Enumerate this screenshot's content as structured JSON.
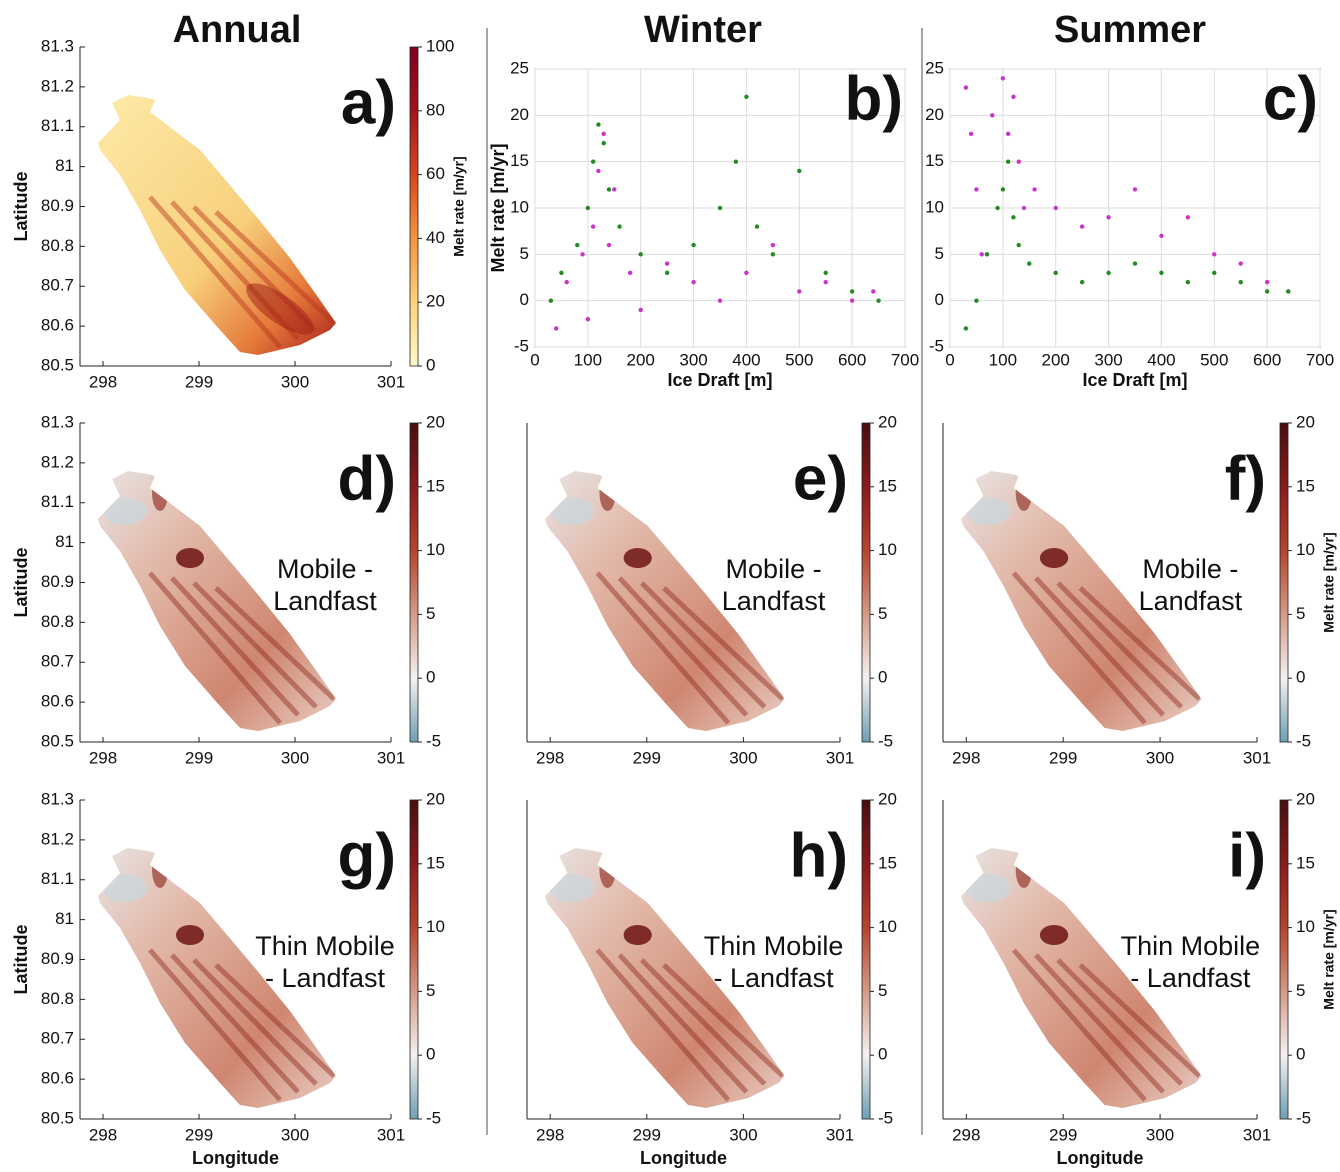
{
  "column_titles": [
    "Annual",
    "Winter",
    "Summer"
  ],
  "chart_data": [
    {
      "type": "map",
      "label": "a)",
      "ylabel": "Latitude",
      "xlim": [
        297.76,
        301
      ],
      "xticks": [
        298,
        299,
        300,
        301
      ],
      "ylim": [
        80.5,
        81.3
      ],
      "yticks": [
        80.5,
        80.6,
        80.7,
        80.8,
        80.9,
        81,
        81.1,
        81.2,
        81.3
      ],
      "colorbar": {
        "lim": [
          0,
          100
        ],
        "ticks": [
          0,
          20,
          40,
          60,
          80,
          100
        ],
        "label": "Melt rate [m/yr]",
        "colors": [
          "#fffbc8",
          "#fdd27a",
          "#f5953d",
          "#d8451c",
          "#a3141a",
          "#800020"
        ]
      }
    },
    {
      "type": "scatter",
      "label": "b)",
      "xlabel": "Ice Draft [m]",
      "ylabel": "Melt rate [m/yr]",
      "xlim": [
        0,
        700
      ],
      "xticks": [
        0,
        100,
        200,
        300,
        400,
        500,
        600,
        700
      ],
      "ylim": [
        -5,
        25
      ],
      "yticks": [
        -5,
        0,
        5,
        10,
        15,
        20,
        25
      ],
      "grid": true,
      "series": [
        {
          "color": "#cc33cc",
          "x": [
            40,
            60,
            90,
            100,
            110,
            120,
            130,
            140,
            150,
            180,
            200,
            250,
            300,
            350,
            400,
            450,
            500,
            550,
            600,
            640
          ],
          "values": [
            -3,
            2,
            5,
            -2,
            8,
            14,
            18,
            6,
            12,
            3,
            -1,
            4,
            2,
            0,
            3,
            6,
            1,
            2,
            0,
            1
          ]
        },
        {
          "color": "#228b22",
          "x": [
            30,
            50,
            80,
            100,
            110,
            120,
            130,
            140,
            160,
            200,
            250,
            300,
            350,
            380,
            400,
            420,
            450,
            500,
            550,
            600,
            650
          ],
          "values": [
            0,
            3,
            6,
            10,
            15,
            19,
            17,
            12,
            8,
            5,
            3,
            6,
            10,
            15,
            22,
            8,
            5,
            14,
            3,
            1,
            0
          ]
        }
      ]
    },
    {
      "type": "scatter",
      "label": "c)",
      "xlabel": "Ice Draft [m]",
      "xlim": [
        0,
        700
      ],
      "xticks": [
        0,
        100,
        200,
        300,
        400,
        500,
        600,
        700
      ],
      "ylim": [
        -5,
        25
      ],
      "yticks": [
        -5,
        0,
        5,
        10,
        15,
        20,
        25
      ],
      "grid": true,
      "series": [
        {
          "color": "#cc33cc",
          "x": [
            30,
            40,
            50,
            60,
            80,
            100,
            110,
            120,
            130,
            140,
            160,
            200,
            250,
            300,
            350,
            400,
            450,
            500,
            550,
            600,
            640
          ],
          "values": [
            23,
            18,
            12,
            5,
            20,
            24,
            18,
            22,
            15,
            10,
            12,
            10,
            8,
            9,
            12,
            7,
            9,
            5,
            4,
            2,
            1
          ]
        },
        {
          "color": "#228b22",
          "x": [
            30,
            50,
            70,
            90,
            100,
            110,
            120,
            130,
            150,
            200,
            250,
            300,
            350,
            400,
            450,
            500,
            550,
            600,
            640
          ],
          "values": [
            -3,
            0,
            5,
            10,
            12,
            15,
            9,
            6,
            4,
            3,
            2,
            3,
            4,
            3,
            2,
            3,
            2,
            1,
            1
          ]
        }
      ]
    },
    {
      "type": "map",
      "label": "d)",
      "annotation": [
        "Mobile -",
        "Landfast"
      ],
      "ylabel": "Latitude",
      "xlim": [
        297.76,
        301
      ],
      "xticks": [
        298,
        299,
        300,
        301
      ],
      "ylim": [
        80.5,
        81.3
      ],
      "yticks": [
        80.5,
        80.6,
        80.7,
        80.8,
        80.9,
        81,
        81.1,
        81.2,
        81.3
      ],
      "colorbar": {
        "lim": [
          -5,
          20
        ],
        "ticks": [
          -5,
          0,
          5,
          10,
          15,
          20
        ],
        "colors": [
          "#6e9fb4",
          "#f4f1f0",
          "#d59a86",
          "#b5442d",
          "#8a1b1b",
          "#4a0d10"
        ]
      }
    },
    {
      "type": "map",
      "label": "e)",
      "annotation": [
        "Mobile -",
        "Landfast"
      ],
      "xlim": [
        297.76,
        301
      ],
      "xticks": [
        298,
        299,
        300,
        301
      ],
      "ylim": [
        80.5,
        81.3
      ],
      "colorbar": {
        "lim": [
          -5,
          20
        ],
        "ticks": [
          -5,
          0,
          5,
          10,
          15,
          20
        ],
        "colors": [
          "#6e9fb4",
          "#f4f1f0",
          "#d59a86",
          "#b5442d",
          "#8a1b1b",
          "#4a0d10"
        ]
      }
    },
    {
      "type": "map",
      "label": "f)",
      "annotation": [
        "Mobile -",
        "Landfast"
      ],
      "xlim": [
        297.76,
        301
      ],
      "xticks": [
        298,
        299,
        300,
        301
      ],
      "ylim": [
        80.5,
        81.3
      ],
      "colorbar": {
        "lim": [
          -5,
          20
        ],
        "ticks": [
          -5,
          0,
          5,
          10,
          15,
          20
        ],
        "label": "Melt rate [m/yr]",
        "colors": [
          "#6e9fb4",
          "#f4f1f0",
          "#d59a86",
          "#b5442d",
          "#8a1b1b",
          "#4a0d10"
        ]
      }
    },
    {
      "type": "map",
      "label": "g)",
      "annotation": [
        "Thin Mobile",
        "- Landfast"
      ],
      "ylabel": "Latitude",
      "xlabel": "Longitude",
      "xlim": [
        297.76,
        301
      ],
      "xticks": [
        298,
        299,
        300,
        301
      ],
      "ylim": [
        80.5,
        81.3
      ],
      "yticks": [
        80.5,
        80.6,
        80.7,
        80.8,
        80.9,
        81,
        81.1,
        81.2,
        81.3
      ],
      "colorbar": {
        "lim": [
          -5,
          20
        ],
        "ticks": [
          -5,
          0,
          5,
          10,
          15,
          20
        ],
        "colors": [
          "#6e9fb4",
          "#f4f1f0",
          "#d59a86",
          "#b5442d",
          "#8a1b1b",
          "#4a0d10"
        ]
      }
    },
    {
      "type": "map",
      "label": "h)",
      "annotation": [
        "Thin Mobile",
        "- Landfast"
      ],
      "xlabel": "Longitude",
      "xlim": [
        297.76,
        301
      ],
      "xticks": [
        298,
        299,
        300,
        301
      ],
      "ylim": [
        80.5,
        81.3
      ],
      "colorbar": {
        "lim": [
          -5,
          20
        ],
        "ticks": [
          -5,
          0,
          5,
          10,
          15,
          20
        ],
        "colors": [
          "#6e9fb4",
          "#f4f1f0",
          "#d59a86",
          "#b5442d",
          "#8a1b1b",
          "#4a0d10"
        ]
      }
    },
    {
      "type": "map",
      "label": "i)",
      "annotation": [
        "Thin Mobile",
        "- Landfast"
      ],
      "xlabel": "Longitude",
      "xlim": [
        297.76,
        301
      ],
      "xticks": [
        298,
        299,
        300,
        301
      ],
      "ylim": [
        80.5,
        81.3
      ],
      "colorbar": {
        "lim": [
          -5,
          20
        ],
        "ticks": [
          -5,
          0,
          5,
          10,
          15,
          20
        ],
        "label": "Melt rate [m/yr]",
        "colors": [
          "#6e9fb4",
          "#f4f1f0",
          "#d59a86",
          "#b5442d",
          "#8a1b1b",
          "#4a0d10"
        ]
      }
    }
  ]
}
